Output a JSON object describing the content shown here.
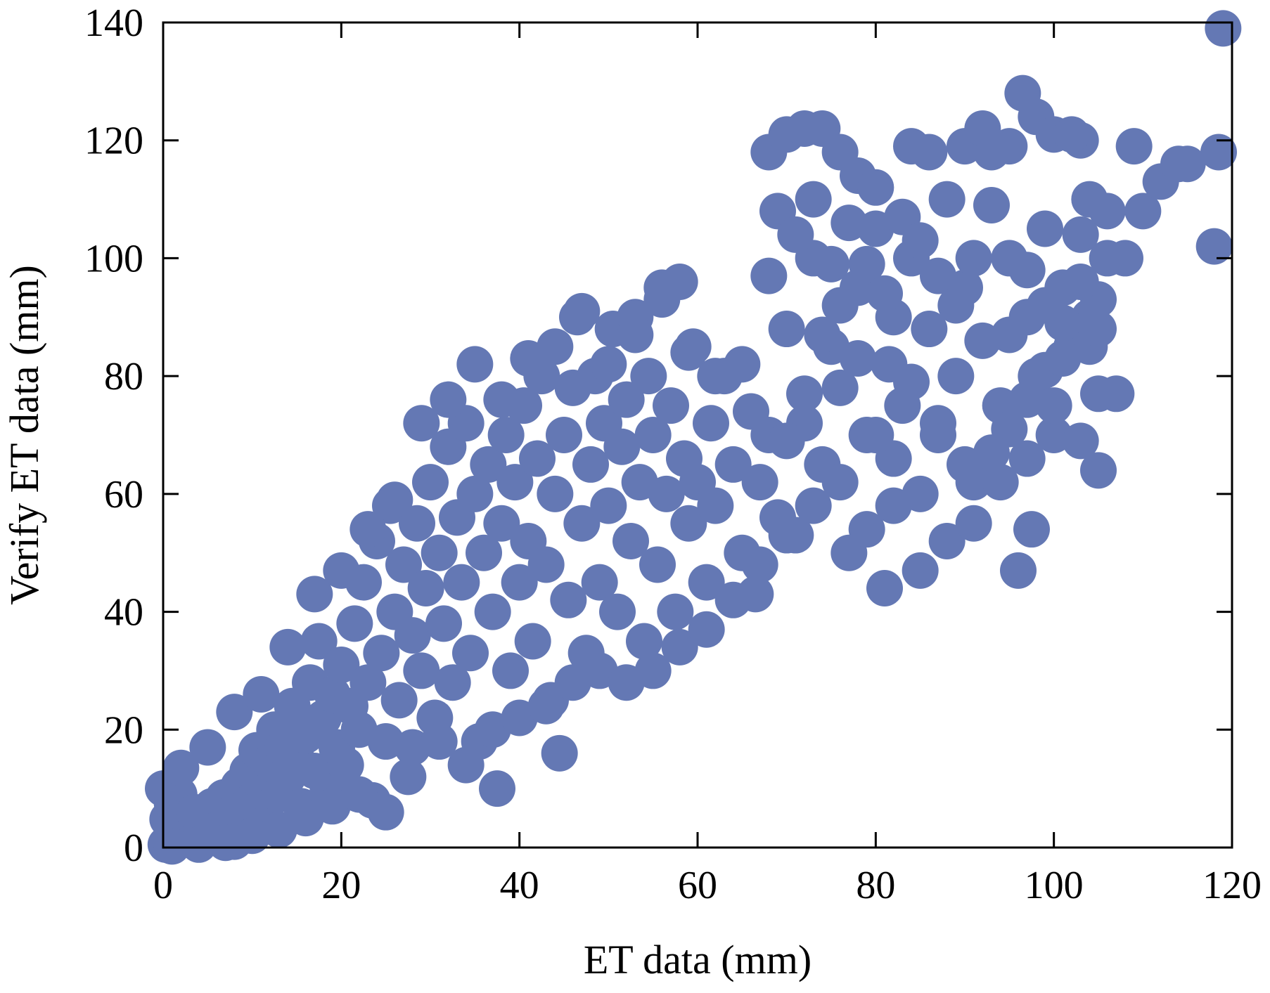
{
  "chart_data": {
    "type": "scatter",
    "title": "",
    "xlabel": "ET data (mm)",
    "ylabel": "Verify ET data (mm)",
    "xlim": [
      0,
      120
    ],
    "ylim": [
      0,
      140
    ],
    "x_ticks": [
      "0",
      "20",
      "40",
      "60",
      "80",
      "100",
      "120"
    ],
    "y_ticks": [
      "0",
      "20",
      "40",
      "60",
      "80",
      "100",
      "120",
      "140"
    ],
    "grid": false,
    "legend": "none",
    "marker_color": "#6478b4",
    "series": [
      {
        "points": [
          [
            0.3,
            0.5
          ],
          [
            0.8,
            1.2
          ],
          [
            1.5,
            2.0
          ],
          [
            2.2,
            1.5
          ],
          [
            3.0,
            3.2
          ],
          [
            0.5,
            4.8
          ],
          [
            1.0,
            7.5
          ],
          [
            1.8,
            9.0
          ],
          [
            2.5,
            5.5
          ],
          [
            3.5,
            6.0
          ],
          [
            4.2,
            2.5
          ],
          [
            5.0,
            4.5
          ],
          [
            5.5,
            7.0
          ],
          [
            6.0,
            3.0
          ],
          [
            6.8,
            8.5
          ],
          [
            7.5,
            5.5
          ],
          [
            8.0,
            1.0
          ],
          [
            8.5,
            10.5
          ],
          [
            9.0,
            6.5
          ],
          [
            9.5,
            13.0
          ],
          [
            10.0,
            8.0
          ],
          [
            10.5,
            16.5
          ],
          [
            11.0,
            11.0
          ],
          [
            11.5,
            4.0
          ],
          [
            12.0,
            14.5
          ],
          [
            12.5,
            20.0
          ],
          [
            13.0,
            9.0
          ],
          [
            13.5,
            17.0
          ],
          [
            14.0,
            12.0
          ],
          [
            14.5,
            24.0
          ],
          [
            15.0,
            15.0
          ],
          [
            15.5,
            7.0
          ],
          [
            16.0,
            19.0
          ],
          [
            16.5,
            28.0
          ],
          [
            17.0,
            13.0
          ],
          [
            17.5,
            35.0
          ],
          [
            18.0,
            22.0
          ],
          [
            18.5,
            10.0
          ],
          [
            19.0,
            26.0
          ],
          [
            19.5,
            17.0
          ],
          [
            20.0,
            31.0
          ],
          [
            20.5,
            14.0
          ],
          [
            21.0,
            24.0
          ],
          [
            21.5,
            38.0
          ],
          [
            22.0,
            20.0
          ],
          [
            22.5,
            45.0
          ],
          [
            23.0,
            28.0
          ],
          [
            23.5,
            8.0
          ],
          [
            24.0,
            52.0
          ],
          [
            24.5,
            33.0
          ],
          [
            25.0,
            18.0
          ],
          [
            25.5,
            58.0
          ],
          [
            26.0,
            40.0
          ],
          [
            26.5,
            25.0
          ],
          [
            27.0,
            48.0
          ],
          [
            27.5,
            12.0
          ],
          [
            28.0,
            36.0
          ],
          [
            28.5,
            55.0
          ],
          [
            29.0,
            30.0
          ],
          [
            29.5,
            44.0
          ],
          [
            30.0,
            62.0
          ],
          [
            30.5,
            22.0
          ],
          [
            31.0,
            50.0
          ],
          [
            31.5,
            38.0
          ],
          [
            32.0,
            68.0
          ],
          [
            32.5,
            28.0
          ],
          [
            33.0,
            56.0
          ],
          [
            33.5,
            45.0
          ],
          [
            34.0,
            72.0
          ],
          [
            34.5,
            33.0
          ],
          [
            35.0,
            60.0
          ],
          [
            35.5,
            18.0
          ],
          [
            36.0,
            50.0
          ],
          [
            36.5,
            65.0
          ],
          [
            37.0,
            40.0
          ],
          [
            37.5,
            10.0
          ],
          [
            38.0,
            55.0
          ],
          [
            38.5,
            70.0
          ],
          [
            39.0,
            30.0
          ],
          [
            39.5,
            62.0
          ],
          [
            40.0,
            45.0
          ],
          [
            40.5,
            75.0
          ],
          [
            41.0,
            52.0
          ],
          [
            41.5,
            35.0
          ],
          [
            42.0,
            66.0
          ],
          [
            42.5,
            80.0
          ],
          [
            43.0,
            48.0
          ],
          [
            43.5,
            25.0
          ],
          [
            44.0,
            60.0
          ],
          [
            44.5,
            16.0
          ],
          [
            45.0,
            70.0
          ],
          [
            45.5,
            42.0
          ],
          [
            46.0,
            78.0
          ],
          [
            46.5,
            90.0
          ],
          [
            47.0,
            55.0
          ],
          [
            47.5,
            33.0
          ],
          [
            48.0,
            65.0
          ],
          [
            48.5,
            80.0
          ],
          [
            49.0,
            45.0
          ],
          [
            49.5,
            72.0
          ],
          [
            50.0,
            58.0
          ],
          [
            50.5,
            88.0
          ],
          [
            51.0,
            40.0
          ],
          [
            51.5,
            68.0
          ],
          [
            52.0,
            76.0
          ],
          [
            52.5,
            52.0
          ],
          [
            53.0,
            90.0
          ],
          [
            53.5,
            62.0
          ],
          [
            54.0,
            35.0
          ],
          [
            54.5,
            80.0
          ],
          [
            55.0,
            70.0
          ],
          [
            55.5,
            48.0
          ],
          [
            56.0,
            95.0
          ],
          [
            56.5,
            60.0
          ],
          [
            57.0,
            75.0
          ],
          [
            57.5,
            40.0
          ],
          [
            58.0,
            96.0
          ],
          [
            58.5,
            66.0
          ],
          [
            59.0,
            55.0
          ],
          [
            59.5,
            85.0
          ],
          [
            60.0,
            62.0
          ],
          [
            61.0,
            45.0
          ],
          [
            61.5,
            72.0
          ],
          [
            62.0,
            58.0
          ],
          [
            63.0,
            80.0
          ],
          [
            64.0,
            65.0
          ],
          [
            65.0,
            50.0
          ],
          [
            66.0,
            74.0
          ],
          [
            66.5,
            43.0
          ],
          [
            67.0,
            62.0
          ],
          [
            68.0,
            70.0
          ],
          [
            69.0,
            56.0
          ],
          [
            70.0,
            88.0
          ],
          [
            71.0,
            53.0
          ],
          [
            72.0,
            72.0
          ],
          [
            73.0,
            100.0
          ],
          [
            74.0,
            65.0
          ],
          [
            75.0,
            85.0
          ],
          [
            76.0,
            78.0
          ],
          [
            77.0,
            50.0
          ],
          [
            78.0,
            95.0
          ],
          [
            79.0,
            70.0
          ],
          [
            80.0,
            105.0
          ],
          [
            81.0,
            44.0
          ],
          [
            81.5,
            82.0
          ],
          [
            82.0,
            90.0
          ],
          [
            83.0,
            75.0
          ],
          [
            84.0,
            100.0
          ],
          [
            85.0,
            47.0
          ],
          [
            86.0,
            88.0
          ],
          [
            87.0,
            70.0
          ],
          [
            88.0,
            110.0
          ],
          [
            89.0,
            80.0
          ],
          [
            90.0,
            95.0
          ],
          [
            91.0,
            62.0
          ],
          [
            92.0,
            86.0
          ],
          [
            93.0,
            118.0
          ],
          [
            94.0,
            75.0
          ],
          [
            95.0,
            100.0
          ],
          [
            96.0,
            47.0
          ],
          [
            96.5,
            128.0
          ],
          [
            97.0,
            90.0
          ],
          [
            97.5,
            54.0
          ],
          [
            98.0,
            80.0
          ],
          [
            99.0,
            105.0
          ],
          [
            100.0,
            70.0
          ],
          [
            101.0,
            95.0
          ],
          [
            102.0,
            85.0
          ],
          [
            103.0,
            120.0
          ],
          [
            104.0,
            90.0
          ],
          [
            105.0,
            64.0
          ],
          [
            106.0,
            100.0
          ],
          [
            107.0,
            77.0
          ],
          [
            108.0,
            100.0
          ],
          [
            109.0,
            119.0
          ],
          [
            110.0,
            108.0
          ],
          [
            112.0,
            113.0
          ],
          [
            114.0,
            116.0
          ],
          [
            115.0,
            116.0
          ],
          [
            118.0,
            102.0
          ],
          [
            118.5,
            118.0
          ],
          [
            119.0,
            139.0
          ],
          [
            1.0,
            0.2
          ],
          [
            4.0,
            0.5
          ],
          [
            7.0,
            0.8
          ],
          [
            10.0,
            2.0
          ],
          [
            13.0,
            3.0
          ],
          [
            16.0,
            5.0
          ],
          [
            19.0,
            7.0
          ],
          [
            22.0,
            9.0
          ],
          [
            25.0,
            6.0
          ],
          [
            28.0,
            17.0
          ],
          [
            31.0,
            18.0
          ],
          [
            34.0,
            14.0
          ],
          [
            37.0,
            20.0
          ],
          [
            40.0,
            22.0
          ],
          [
            43.0,
            24.0
          ],
          [
            46.0,
            28.0
          ],
          [
            49.0,
            30.0
          ],
          [
            52.0,
            28.0
          ],
          [
            55.0,
            30.0
          ],
          [
            58.0,
            34.0
          ],
          [
            61.0,
            37.0
          ],
          [
            64.0,
            42.0
          ],
          [
            67.0,
            48.0
          ],
          [
            70.0,
            53.0
          ],
          [
            73.0,
            58.0
          ],
          [
            76.0,
            62.0
          ],
          [
            79.0,
            54.0
          ],
          [
            82.0,
            58.0
          ],
          [
            85.0,
            60.0
          ],
          [
            88.0,
            52.0
          ],
          [
            91.0,
            55.0
          ],
          [
            94.0,
            62.0
          ],
          [
            97.0,
            66.0
          ],
          [
            100.0,
            75.0
          ],
          [
            103.0,
            69.0
          ],
          [
            105.0,
            77.0
          ],
          [
            0.0,
            10.0
          ],
          [
            2.0,
            13.5
          ],
          [
            5.0,
            17.0
          ],
          [
            8.0,
            23.0
          ],
          [
            11.0,
            26.0
          ],
          [
            14.0,
            34.0
          ],
          [
            17.0,
            43.0
          ],
          [
            20.0,
            47.0
          ],
          [
            23.0,
            54.0
          ],
          [
            26.0,
            59.0
          ],
          [
            29.0,
            72.0
          ],
          [
            32.0,
            76.0
          ],
          [
            35.0,
            82.0
          ],
          [
            38.0,
            76.0
          ],
          [
            41.0,
            83.0
          ],
          [
            44.0,
            85.0
          ],
          [
            47.0,
            91.0
          ],
          [
            50.0,
            82.0
          ],
          [
            53.0,
            87.0
          ],
          [
            56.0,
            93.0
          ],
          [
            59.0,
            84.0
          ],
          [
            62.0,
            80.0
          ],
          [
            65.0,
            82.0
          ],
          [
            68.0,
            118.0
          ],
          [
            70.0,
            121.0
          ],
          [
            72.0,
            122.0
          ],
          [
            74.0,
            122.0
          ],
          [
            76.0,
            118.0
          ],
          [
            78.0,
            114.0
          ],
          [
            80.0,
            112.0
          ],
          [
            84.0,
            119.0
          ],
          [
            86.0,
            118.0
          ],
          [
            90.0,
            119.0
          ],
          [
            92.0,
            122.0
          ],
          [
            95.0,
            119.0
          ],
          [
            98.0,
            124.0
          ],
          [
            100.0,
            121.0
          ],
          [
            102.0,
            121.0
          ],
          [
            104.0,
            110.0
          ],
          [
            106.0,
            108.0
          ],
          [
            104.0,
            85.0
          ],
          [
            105.0,
            93.0
          ],
          [
            103.0,
            96.0
          ],
          [
            101.0,
            89.0
          ],
          [
            99.0,
            81.0
          ],
          [
            97.0,
            76.0
          ],
          [
            95.0,
            71.0
          ],
          [
            93.0,
            67.0
          ],
          [
            90.0,
            65.0
          ],
          [
            87.0,
            72.0
          ],
          [
            84.0,
            79.0
          ],
          [
            82.0,
            66.0
          ],
          [
            80.0,
            70.0
          ],
          [
            78.0,
            83.0
          ],
          [
            76.0,
            92.0
          ],
          [
            74.0,
            87.0
          ],
          [
            72.0,
            77.0
          ],
          [
            70.0,
            69.0
          ],
          [
            68.0,
            97.0
          ],
          [
            69.0,
            108.0
          ],
          [
            71.0,
            104.0
          ],
          [
            73.0,
            110.0
          ],
          [
            75.0,
            99.0
          ],
          [
            77.0,
            106.0
          ],
          [
            79.0,
            99.0
          ],
          [
            81.0,
            94.0
          ],
          [
            83.0,
            107.0
          ],
          [
            85.0,
            103.0
          ],
          [
            87.0,
            97.0
          ],
          [
            89.0,
            92.0
          ],
          [
            91.0,
            100.0
          ],
          [
            93.0,
            109.0
          ],
          [
            95.0,
            87.0
          ],
          [
            97.0,
            98.0
          ],
          [
            99.0,
            92.0
          ],
          [
            101.0,
            83.0
          ],
          [
            103.0,
            104.0
          ],
          [
            105.0,
            88.0
          ]
        ]
      }
    ]
  }
}
